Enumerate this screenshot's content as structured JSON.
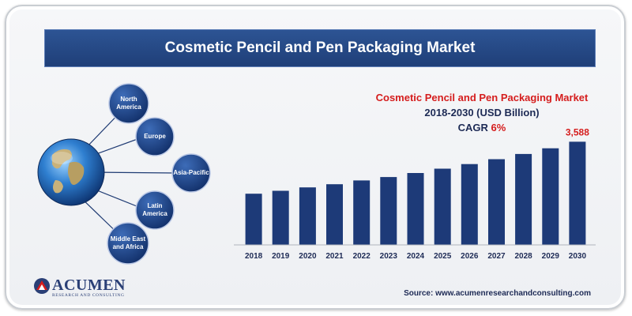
{
  "header": {
    "title": "Cosmetic Pencil and Pen Packaging Market"
  },
  "regions": [
    {
      "label": "North America"
    },
    {
      "label": "Europe"
    },
    {
      "label": "Asia-Pacific"
    },
    {
      "label": "Latin America"
    },
    {
      "label": "Middle East and Africa"
    }
  ],
  "chart_heading": {
    "line1": "Cosmetic Pencil and Pen Packaging Market",
    "line2": "2018-2030  (USD Billion)",
    "cagr_prefix": "CAGR",
    "cagr_value": "6%"
  },
  "chart_data": {
    "type": "bar",
    "categories": [
      "2018",
      "2019",
      "2020",
      "2021",
      "2022",
      "2023",
      "2024",
      "2025",
      "2026",
      "2027",
      "2028",
      "2029",
      "2030"
    ],
    "values": [
      1780,
      1880,
      2000,
      2110,
      2240,
      2360,
      2500,
      2650,
      2810,
      2980,
      3160,
      3360,
      3588
    ],
    "data_labels": [
      {
        "index": 12,
        "text": "3,588"
      }
    ],
    "title": "Cosmetic Pencil and Pen Packaging Market",
    "xlabel": "",
    "ylabel": "",
    "ylim": [
      0,
      3900
    ],
    "grid": false,
    "bar_color": "#1d3a78"
  },
  "logo": {
    "name": "ACUMEN",
    "tagline": "RESEARCH AND CONSULTING"
  },
  "source": "Source: www.acumenresearchandconsulting.com",
  "colors": {
    "accent_red": "#d51d1d",
    "navy": "#1d2a55",
    "bar": "#1d3a78",
    "title_bar": "#244884"
  }
}
